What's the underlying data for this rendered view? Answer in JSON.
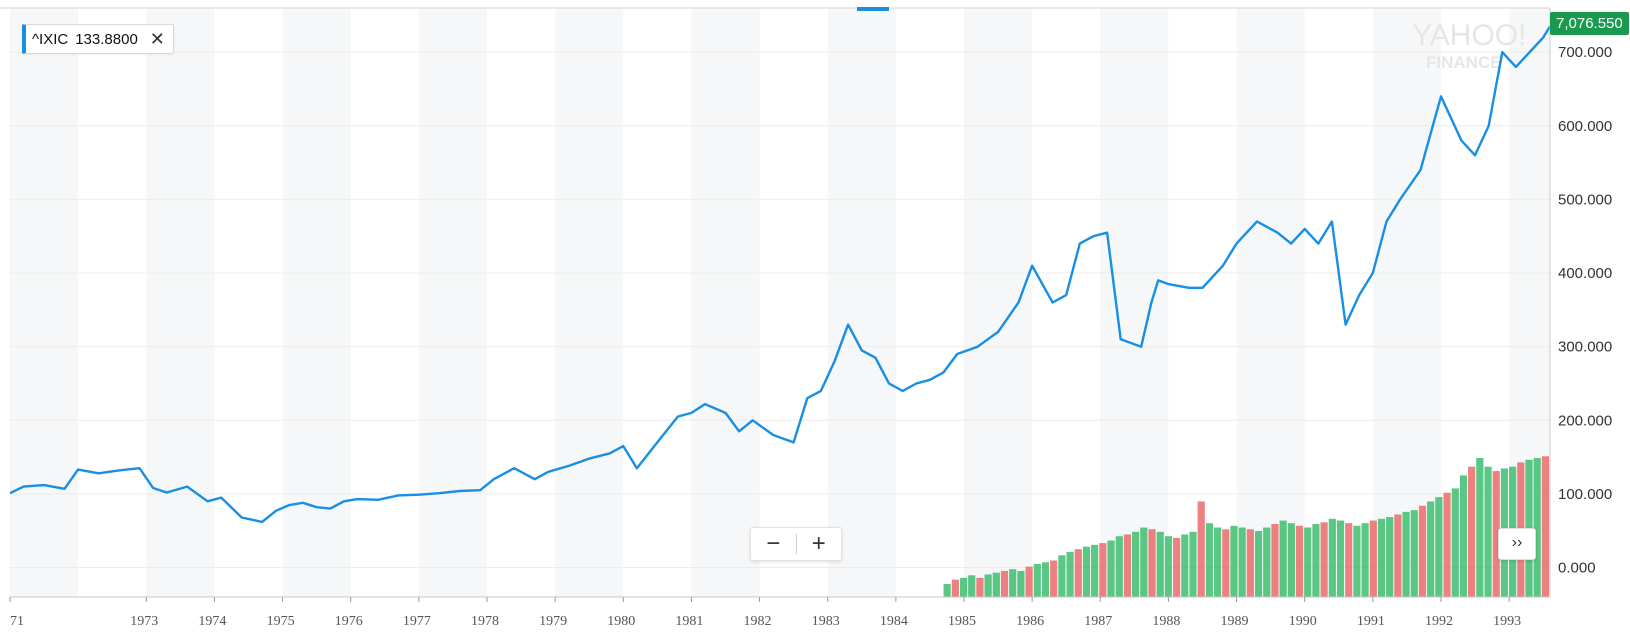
{
  "legend": {
    "symbol": "^IXIC",
    "value": "133.8800",
    "close_icon": "close-icon",
    "close_glyph": "✕"
  },
  "last_price": "7,076.550",
  "watermark": {
    "line1": "YAHOO!",
    "line2": "FINANCE"
  },
  "zoom": {
    "minus": "−",
    "plus": "+"
  },
  "expand": {
    "label": "››",
    "icon": "chevrons-right-icon"
  },
  "colors": {
    "line": "#188fe2",
    "volume_up": "#3dbd6e",
    "volume_down": "#ea6a6a",
    "band": "#f6f7f8",
    "grid": "#ececec",
    "price_tag": "#1a9a4f"
  },
  "chart_data": {
    "type": "line",
    "title": "",
    "xlabel": "",
    "ylabel": "",
    "x_tick_labels": [
      "71",
      "1973",
      "1974",
      "1975",
      "1976",
      "1977",
      "1978",
      "1979",
      "1980",
      "1981",
      "1982",
      "1983",
      "1984",
      "1985",
      "1986",
      "1987",
      "1988",
      "1989",
      "1990",
      "1991",
      "1992",
      "1993"
    ],
    "y_tick_labels": [
      "0.000",
      "100.000",
      "200.000",
      "300.000",
      "400.000",
      "500.000",
      "600.000",
      "700.000"
    ],
    "ylim": [
      -40,
      760
    ],
    "xlim": [
      1971.0,
      1993.6
    ],
    "grid": true,
    "series": [
      {
        "name": "^IXIC",
        "x": [
          1971.0,
          1971.2,
          1971.5,
          1971.8,
          1972.0,
          1972.3,
          1972.6,
          1972.9,
          1973.1,
          1973.3,
          1973.6,
          1973.9,
          1974.1,
          1974.4,
          1974.7,
          1974.9,
          1975.1,
          1975.3,
          1975.5,
          1975.7,
          1975.9,
          1976.1,
          1976.4,
          1976.7,
          1977.0,
          1977.3,
          1977.6,
          1977.9,
          1978.1,
          1978.4,
          1978.7,
          1978.9,
          1979.2,
          1979.5,
          1979.8,
          1980.0,
          1980.2,
          1980.5,
          1980.8,
          1981.0,
          1981.2,
          1981.5,
          1981.7,
          1981.9,
          1982.2,
          1982.5,
          1982.7,
          1982.9,
          1983.1,
          1983.3,
          1983.5,
          1983.7,
          1983.9,
          1984.1,
          1984.3,
          1984.5,
          1984.7,
          1984.9,
          1985.2,
          1985.5,
          1985.8,
          1986.0,
          1986.3,
          1986.5,
          1986.7,
          1986.9,
          1987.1,
          1987.3,
          1987.6,
          1987.75,
          1987.85,
          1988.0,
          1988.3,
          1988.5,
          1988.8,
          1989.0,
          1989.3,
          1989.6,
          1989.8,
          1990.0,
          1990.2,
          1990.4,
          1990.6,
          1990.8,
          1991.0,
          1991.2,
          1991.4,
          1991.7,
          1992.0,
          1992.1,
          1992.3,
          1992.5,
          1992.7,
          1992.9,
          1993.1,
          1993.3,
          1993.5,
          1993.6
        ],
        "values": [
          101,
          110,
          112,
          107,
          133,
          128,
          132,
          135,
          108,
          102,
          110,
          90,
          95,
          68,
          62,
          77,
          85,
          88,
          82,
          80,
          90,
          93,
          92,
          98,
          99,
          101,
          104,
          105,
          120,
          135,
          120,
          130,
          138,
          148,
          155,
          165,
          135,
          170,
          205,
          210,
          222,
          210,
          185,
          200,
          180,
          170,
          230,
          240,
          280,
          330,
          295,
          285,
          250,
          240,
          250,
          255,
          265,
          290,
          300,
          320,
          360,
          410,
          360,
          370,
          440,
          450,
          455,
          310,
          300,
          360,
          390,
          385,
          380,
          380,
          410,
          440,
          470,
          455,
          440,
          460,
          440,
          470,
          330,
          370,
          400,
          470,
          500,
          540,
          640,
          620,
          580,
          560,
          600,
          700,
          680,
          700,
          720,
          735
        ]
      }
    ],
    "volume": {
      "x_start": 1984.7,
      "x_end": 1993.6,
      "ylim": [
        0,
        175
      ],
      "values": [
        15,
        20,
        22,
        25,
        22,
        26,
        28,
        30,
        32,
        30,
        35,
        38,
        40,
        42,
        48,
        52,
        55,
        58,
        60,
        62,
        65,
        70,
        72,
        75,
        80,
        78,
        75,
        70,
        68,
        72,
        75,
        110,
        85,
        80,
        78,
        82,
        80,
        78,
        76,
        80,
        84,
        88,
        85,
        82,
        80,
        84,
        86,
        90,
        88,
        85,
        82,
        85,
        88,
        90,
        92,
        95,
        98,
        100,
        105,
        110,
        115,
        120,
        125,
        140,
        150,
        160,
        150,
        145,
        148,
        150,
        155,
        158,
        160,
        162
      ]
    }
  }
}
